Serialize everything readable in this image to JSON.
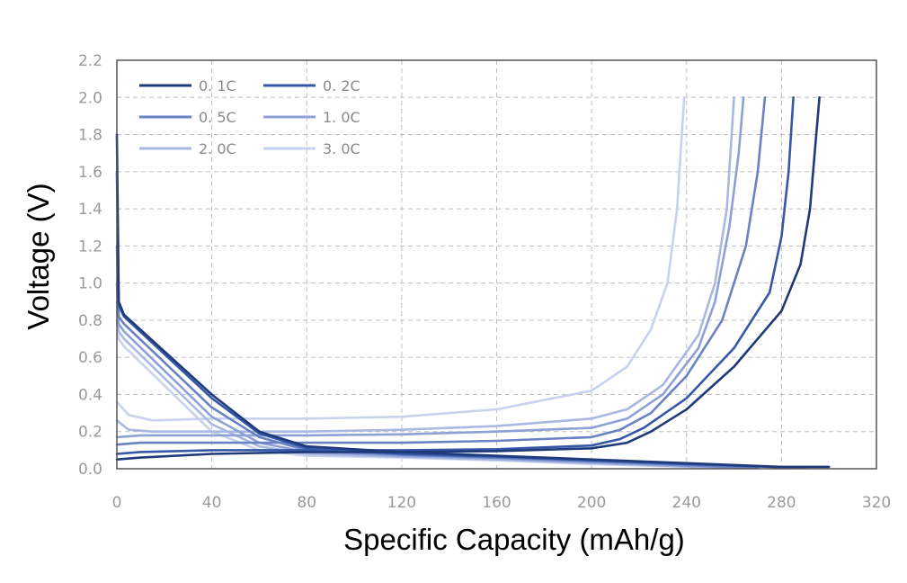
{
  "chart_data": {
    "type": "line",
    "title": "",
    "xlabel": "Specific Capacity (mAh/g)",
    "ylabel": "Voltage (V)",
    "xlim": [
      0,
      320
    ],
    "ylim": [
      0,
      2.2
    ],
    "x_ticks": [
      "0",
      "40",
      "80",
      "120",
      "160",
      "200",
      "240",
      "280",
      "320"
    ],
    "y_ticks": [
      "0.0",
      "0.2",
      "0.4",
      "0.6",
      "0.8",
      "1.0",
      "1.2",
      "1.4",
      "1.6",
      "1.8",
      "2.0",
      "2.2"
    ],
    "grid": true,
    "legend_position": "top-left",
    "series": [
      {
        "name": "0. 1C",
        "color": "#1f3a7a",
        "discharge": [
          [
            0,
            1.8
          ],
          [
            0.8,
            0.9
          ],
          [
            3,
            0.83
          ],
          [
            40,
            0.4
          ],
          [
            60,
            0.2
          ],
          [
            80,
            0.12
          ],
          [
            120,
            0.09
          ],
          [
            160,
            0.07
          ],
          [
            200,
            0.05
          ],
          [
            240,
            0.03
          ],
          [
            280,
            0.01
          ],
          [
            300,
            0.01
          ]
        ],
        "charge": [
          [
            0,
            0.05
          ],
          [
            10,
            0.06
          ],
          [
            40,
            0.08
          ],
          [
            80,
            0.09
          ],
          [
            120,
            0.09
          ],
          [
            160,
            0.095
          ],
          [
            200,
            0.11
          ],
          [
            215,
            0.14
          ],
          [
            225,
            0.2
          ],
          [
            240,
            0.32
          ],
          [
            260,
            0.55
          ],
          [
            280,
            0.85
          ],
          [
            288,
            1.1
          ],
          [
            292,
            1.4
          ],
          [
            294,
            1.7
          ],
          [
            296,
            2.0
          ]
        ]
      },
      {
        "name": "0. 2C",
        "color": "#3657a8",
        "discharge": [
          [
            0,
            1.6
          ],
          [
            0.8,
            0.88
          ],
          [
            3,
            0.82
          ],
          [
            40,
            0.38
          ],
          [
            60,
            0.19
          ],
          [
            80,
            0.11
          ],
          [
            120,
            0.08
          ],
          [
            160,
            0.065
          ],
          [
            200,
            0.045
          ],
          [
            240,
            0.025
          ],
          [
            280,
            0.008
          ],
          [
            290,
            0.005
          ]
        ],
        "charge": [
          [
            0,
            0.08
          ],
          [
            10,
            0.09
          ],
          [
            40,
            0.1
          ],
          [
            80,
            0.1
          ],
          [
            120,
            0.1
          ],
          [
            160,
            0.105
          ],
          [
            200,
            0.125
          ],
          [
            212,
            0.16
          ],
          [
            222,
            0.22
          ],
          [
            240,
            0.38
          ],
          [
            260,
            0.65
          ],
          [
            275,
            0.95
          ],
          [
            280,
            1.25
          ],
          [
            283,
            1.6
          ],
          [
            285,
            2.0
          ]
        ]
      },
      {
        "name": "0. 5C",
        "color": "#6882c4",
        "discharge": [
          [
            0,
            1.2
          ],
          [
            0.8,
            0.82
          ],
          [
            3,
            0.78
          ],
          [
            40,
            0.33
          ],
          [
            60,
            0.17
          ],
          [
            80,
            0.1
          ],
          [
            120,
            0.075
          ],
          [
            160,
            0.06
          ],
          [
            200,
            0.04
          ],
          [
            240,
            0.02
          ],
          [
            270,
            0.005
          ]
        ],
        "charge": [
          [
            0,
            0.13
          ],
          [
            10,
            0.14
          ],
          [
            40,
            0.14
          ],
          [
            80,
            0.14
          ],
          [
            120,
            0.14
          ],
          [
            160,
            0.15
          ],
          [
            200,
            0.17
          ],
          [
            212,
            0.21
          ],
          [
            225,
            0.3
          ],
          [
            240,
            0.5
          ],
          [
            255,
            0.8
          ],
          [
            265,
            1.2
          ],
          [
            270,
            1.6
          ],
          [
            273,
            2.0
          ]
        ]
      },
      {
        "name": "1. 0C",
        "color": "#8ea1d6",
        "discharge": [
          [
            0,
            1.0
          ],
          [
            0.8,
            0.78
          ],
          [
            3,
            0.74
          ],
          [
            40,
            0.28
          ],
          [
            60,
            0.14
          ],
          [
            80,
            0.09
          ],
          [
            120,
            0.07
          ],
          [
            160,
            0.055
          ],
          [
            200,
            0.035
          ],
          [
            240,
            0.015
          ],
          [
            265,
            0.005
          ]
        ],
        "charge": [
          [
            0,
            0.17
          ],
          [
            10,
            0.18
          ],
          [
            40,
            0.18
          ],
          [
            80,
            0.18
          ],
          [
            120,
            0.185
          ],
          [
            160,
            0.2
          ],
          [
            200,
            0.22
          ],
          [
            215,
            0.27
          ],
          [
            230,
            0.4
          ],
          [
            245,
            0.65
          ],
          [
            252,
            0.9
          ],
          [
            258,
            1.3
          ],
          [
            262,
            1.7
          ],
          [
            264,
            2.0
          ]
        ]
      },
      {
        "name": "2. 0C",
        "color": "#a9b8e2",
        "discharge": [
          [
            0,
            0.9
          ],
          [
            0.8,
            0.74
          ],
          [
            3,
            0.7
          ],
          [
            40,
            0.24
          ],
          [
            60,
            0.12
          ],
          [
            80,
            0.08
          ],
          [
            120,
            0.065
          ],
          [
            160,
            0.05
          ],
          [
            200,
            0.03
          ],
          [
            240,
            0.012
          ],
          [
            262,
            0.005
          ]
        ],
        "charge": [
          [
            0,
            0.26
          ],
          [
            5,
            0.21
          ],
          [
            15,
            0.2
          ],
          [
            40,
            0.2
          ],
          [
            80,
            0.2
          ],
          [
            120,
            0.21
          ],
          [
            160,
            0.23
          ],
          [
            200,
            0.27
          ],
          [
            215,
            0.32
          ],
          [
            230,
            0.45
          ],
          [
            245,
            0.72
          ],
          [
            252,
            1.0
          ],
          [
            257,
            1.4
          ],
          [
            260,
            2.0
          ]
        ]
      },
      {
        "name": "3. 0C",
        "color": "#c8d2ef",
        "discharge": [
          [
            0,
            0.8
          ],
          [
            0.8,
            0.7
          ],
          [
            3,
            0.66
          ],
          [
            40,
            0.2
          ],
          [
            60,
            0.1
          ],
          [
            80,
            0.07
          ],
          [
            120,
            0.06
          ],
          [
            160,
            0.045
          ],
          [
            200,
            0.025
          ],
          [
            240,
            0.01
          ],
          [
            255,
            0.005
          ]
        ],
        "charge": [
          [
            0,
            0.36
          ],
          [
            5,
            0.29
          ],
          [
            15,
            0.26
          ],
          [
            40,
            0.27
          ],
          [
            80,
            0.27
          ],
          [
            120,
            0.28
          ],
          [
            160,
            0.32
          ],
          [
            200,
            0.42
          ],
          [
            215,
            0.55
          ],
          [
            225,
            0.75
          ],
          [
            232,
            1.0
          ],
          [
            236,
            1.4
          ],
          [
            238,
            1.8
          ],
          [
            239,
            2.0
          ]
        ]
      }
    ]
  }
}
